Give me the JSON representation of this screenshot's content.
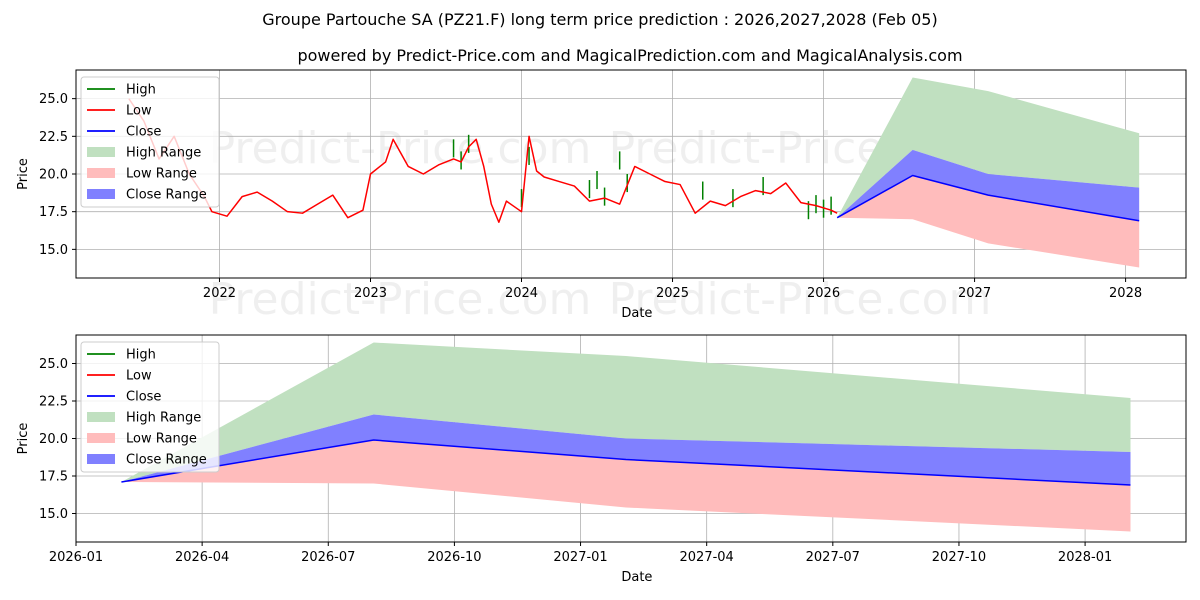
{
  "page": {
    "title": "Groupe Partouche SA (PZ21.F) long term price prediction : 2026,2027,2028 (Feb 05)",
    "subtitle": "powered by Predict-Price.com and MagicalPrediction.com and MagicalAnalysis.com",
    "watermark": "Predict-Price.com"
  },
  "colors": {
    "high": "#008000",
    "low": "#ff0000",
    "close": "#0000ff",
    "high_range": "#c0e0c0",
    "low_range": "#ffbcbc",
    "close_range": "#8080ff"
  },
  "chart_data": [
    {
      "type": "line",
      "xlabel": "Date",
      "ylabel": "Price",
      "xlim": [
        2021.05,
        2028.4
      ],
      "ylim": [
        13.1,
        26.9
      ],
      "grid": true,
      "legend_position": "top-left",
      "xticks": [
        2022,
        2023,
        2024,
        2025,
        2026,
        2027,
        2028
      ],
      "xtick_labels": [
        "2022",
        "2023",
        "2024",
        "2025",
        "2026",
        "2027",
        "2028"
      ],
      "yticks": [
        15.0,
        17.5,
        20.0,
        22.5,
        25.0
      ],
      "ytick_labels": [
        "15.0",
        "17.5",
        "20.0",
        "22.5",
        "25.0"
      ],
      "legend": [
        "High",
        "Low",
        "Close",
        "High Range",
        "Low Range",
        "Close Range"
      ],
      "history_low": {
        "x": [
          2021.4,
          2021.5,
          2021.6,
          2021.7,
          2021.8,
          2021.9,
          2021.95,
          2022.05,
          2022.15,
          2022.25,
          2022.35,
          2022.45,
          2022.55,
          2022.65,
          2022.75,
          2022.85,
          2022.95,
          2023.0,
          2023.1,
          2023.15,
          2023.25,
          2023.35,
          2023.45,
          2023.55,
          2023.6,
          2023.65,
          2023.7,
          2023.75,
          2023.8,
          2023.85,
          2023.9,
          2024.0,
          2024.05,
          2024.1,
          2024.15,
          2024.25,
          2024.35,
          2024.45,
          2024.55,
          2024.65,
          2024.75,
          2024.85,
          2024.95,
          2025.05,
          2025.15,
          2025.25,
          2025.35,
          2025.45,
          2025.55,
          2025.65,
          2025.75,
          2025.85,
          2025.95,
          2026.05,
          2026.09
        ],
        "y": [
          25.0,
          23.5,
          21.0,
          22.5,
          20.0,
          18.5,
          17.5,
          17.2,
          18.5,
          18.8,
          18.2,
          17.5,
          17.4,
          18.0,
          18.6,
          17.1,
          17.6,
          20.0,
          20.8,
          22.3,
          20.5,
          20.0,
          20.6,
          21.0,
          20.8,
          21.8,
          22.3,
          20.5,
          18.0,
          16.8,
          18.2,
          17.5,
          22.5,
          20.2,
          19.8,
          19.5,
          19.2,
          18.2,
          18.4,
          18.0,
          20.5,
          20.0,
          19.5,
          19.3,
          17.4,
          18.2,
          17.9,
          18.5,
          18.9,
          18.7,
          19.4,
          18.1,
          17.9,
          17.6,
          17.4
        ]
      },
      "history_high": {
        "x": [
          2023.55,
          2023.6,
          2023.65,
          2024.0,
          2024.05,
          2024.45,
          2024.5,
          2024.55,
          2024.65,
          2024.7,
          2025.2,
          2025.4,
          2025.6,
          2025.9,
          2025.95,
          2026.0,
          2026.05
        ],
        "y": [
          22.3,
          21.5,
          22.6,
          19.0,
          21.8,
          19.6,
          20.2,
          19.1,
          21.5,
          20.0,
          19.5,
          19.0,
          19.8,
          18.2,
          18.6,
          18.3,
          18.5
        ]
      },
      "forecast": {
        "x": [
          2026.09,
          2026.59,
          2027.09,
          2028.09
        ],
        "close": [
          17.1,
          19.9,
          18.6,
          16.9
        ],
        "high_range_upper": [
          17.1,
          26.4,
          25.5,
          22.7
        ],
        "close_range_upper": [
          17.1,
          21.6,
          20.0,
          19.1
        ],
        "close_range_lower": [
          17.1,
          19.9,
          18.6,
          16.9
        ],
        "low_range_upper": [
          17.1,
          19.9,
          18.6,
          16.9
        ],
        "low_range_lower": [
          17.1,
          17.0,
          15.4,
          13.8
        ]
      }
    },
    {
      "type": "line",
      "xlabel": "Date",
      "ylabel": "Price",
      "xlim": [
        2026.0,
        2028.2
      ],
      "ylim": [
        13.1,
        26.9
      ],
      "grid": true,
      "legend_position": "top-left",
      "xticks": [
        2026.0,
        2026.25,
        2026.5,
        2026.75,
        2027.0,
        2027.25,
        2027.5,
        2027.75,
        2028.0
      ],
      "xtick_labels": [
        "2026-01",
        "2026-04",
        "2026-07",
        "2026-10",
        "2027-01",
        "2027-04",
        "2027-07",
        "2027-10",
        "2028-01"
      ],
      "yticks": [
        15.0,
        17.5,
        20.0,
        22.5,
        25.0
      ],
      "ytick_labels": [
        "15.0",
        "17.5",
        "20.0",
        "22.5",
        "25.0"
      ],
      "legend": [
        "High",
        "Low",
        "Close",
        "High Range",
        "Low Range",
        "Close Range"
      ],
      "forecast": {
        "x": [
          2026.09,
          2026.59,
          2027.09,
          2028.09
        ],
        "close": [
          17.1,
          19.9,
          18.6,
          16.9
        ],
        "high_range_upper": [
          17.1,
          26.4,
          25.5,
          22.7
        ],
        "close_range_upper": [
          17.1,
          21.6,
          20.0,
          19.1
        ],
        "close_range_lower": [
          17.1,
          19.9,
          18.6,
          16.9
        ],
        "low_range_upper": [
          17.1,
          19.9,
          18.6,
          16.9
        ],
        "low_range_lower": [
          17.1,
          17.0,
          15.4,
          13.8
        ]
      }
    }
  ]
}
